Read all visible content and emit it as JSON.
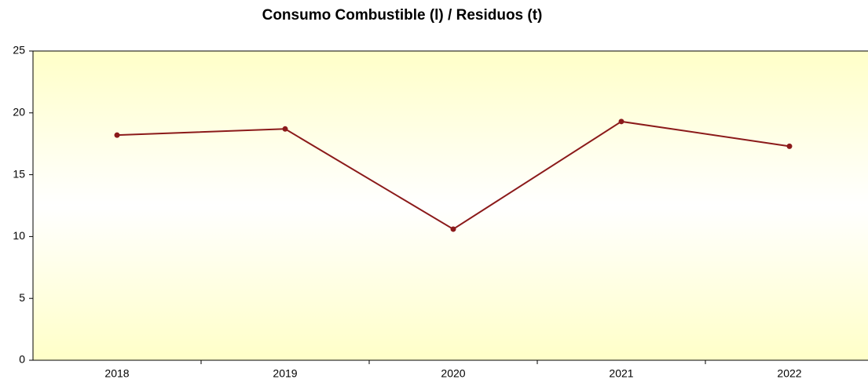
{
  "chart_data": {
    "type": "line",
    "title": "Consumo Combustible (l) / Residuos (t)",
    "categories": [
      "2018",
      "2019",
      "2020",
      "2021",
      "2022"
    ],
    "values": [
      18.2,
      18.7,
      10.6,
      19.3,
      17.3
    ],
    "color": "#8b1a1a",
    "ylim": [
      0,
      25
    ],
    "yticks": [
      0,
      5,
      10,
      15,
      20,
      25
    ]
  }
}
